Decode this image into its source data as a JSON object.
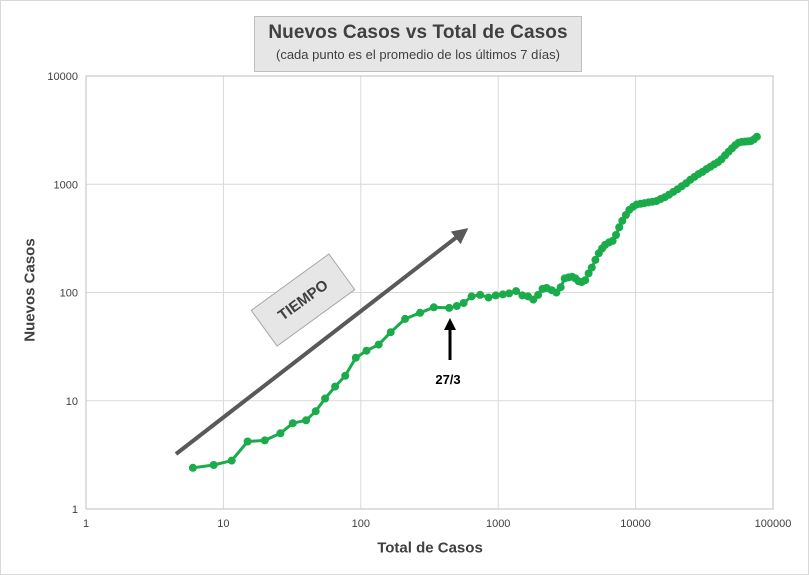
{
  "chart_data": {
    "type": "line",
    "title": "Nuevos Casos vs Total de Casos",
    "subtitle": "(cada punto  es el promedio  de los últimos  7 días)",
    "xlabel": "Total de Casos",
    "ylabel": "Nuevos Casos",
    "x_scale": "log",
    "y_scale": "log",
    "xlim": [
      1,
      100000
    ],
    "ylim": [
      1,
      10000
    ],
    "x_ticks": [
      1,
      10,
      100,
      1000,
      10000,
      100000
    ],
    "x_tick_labels": [
      "1",
      "10",
      "100",
      "1000",
      "10000",
      "100000"
    ],
    "y_ticks": [
      1,
      10,
      100,
      1000,
      10000
    ],
    "y_tick_labels": [
      "1",
      "10",
      "100",
      "1000",
      "10000"
    ],
    "grid": true,
    "legend": "none",
    "series_color": "#1aab4b",
    "series": [
      {
        "x": [
          6,
          8.5,
          11.5,
          15,
          20,
          26,
          32,
          40,
          47,
          55,
          65,
          77,
          92,
          110,
          135,
          165,
          210,
          270,
          340,
          440,
          500,
          560,
          640,
          740,
          850,
          960,
          1080,
          1200,
          1350,
          1500,
          1650,
          1800,
          1950,
          2100,
          2250,
          2450,
          2650,
          2850,
          3050,
          3250,
          3450,
          3650,
          3850,
          4050,
          4300,
          4550,
          4800,
          5100,
          5400,
          5700,
          6000,
          6400,
          6800,
          7200,
          7600,
          8000,
          8500,
          9000,
          9600,
          10200,
          10900,
          11600,
          12400,
          13300,
          14200,
          15200,
          16300,
          17500,
          18800,
          20200,
          21700,
          23300,
          25000,
          26800,
          28700,
          30700,
          32800,
          35000,
          37300,
          39700,
          42200,
          44800,
          47500,
          50300,
          53200,
          56200,
          59300,
          62500,
          65800,
          69200,
          72700,
          76300
        ],
        "y": [
          2.4,
          2.55,
          2.8,
          4.2,
          4.3,
          5.0,
          6.2,
          6.6,
          8.0,
          10.5,
          13.5,
          17.0,
          25.0,
          29.0,
          33.0,
          43.0,
          57.0,
          65.0,
          73.0,
          72.0,
          75.0,
          80.0,
          92.0,
          95.0,
          90.0,
          94.0,
          96.0,
          98.0,
          103.0,
          94.0,
          92.0,
          86.0,
          95.0,
          108.0,
          110.0,
          105.0,
          100.0,
          112.0,
          135.0,
          138.0,
          140.0,
          135.0,
          127.0,
          125.0,
          130.0,
          150.0,
          170.0,
          200.0,
          230.0,
          255.0,
          275.0,
          290.0,
          300.0,
          340.0,
          400.0,
          460.0,
          520.0,
          580.0,
          620.0,
          650.0,
          660.0,
          670.0,
          680.0,
          690.0,
          700.0,
          730.0,
          760.0,
          800.0,
          850.0,
          900.0,
          960.0,
          1020.0,
          1100.0,
          1170.0,
          1240.0,
          1300.0,
          1380.0,
          1450.0,
          1530.0,
          1600.0,
          1700.0,
          1850.0,
          2000.0,
          2150.0,
          2300.0,
          2420.0,
          2460.0,
          2480.0,
          2490.0,
          2510.0,
          2600.0,
          2750.0
        ]
      }
    ],
    "annotations": [
      {
        "text": "27/3",
        "x": 450,
        "y": 73
      },
      {
        "text": "TIEMPO"
      }
    ]
  }
}
